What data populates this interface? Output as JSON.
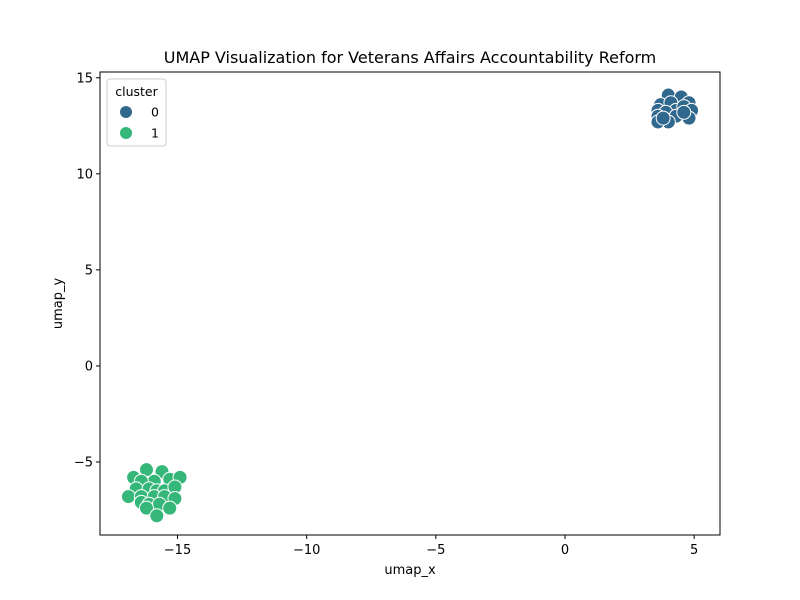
{
  "chart_data": {
    "type": "scatter",
    "title": "UMAP Visualization for Veterans Affairs Accountability Reform",
    "xlabel": "umap_x",
    "ylabel": "umap_y",
    "xlim": [
      -18.0,
      6.0
    ],
    "ylim": [
      -8.8,
      15.3
    ],
    "xticks": [
      -15,
      -10,
      -5,
      0,
      5
    ],
    "yticks": [
      -5,
      0,
      5,
      10,
      15
    ],
    "xtick_labels": [
      "−15",
      "−10",
      "−5",
      "0",
      "5"
    ],
    "ytick_labels": [
      "−5",
      "0",
      "5",
      "10",
      "15"
    ],
    "grid": false,
    "legend": {
      "title": "cluster",
      "placement": "top-left"
    },
    "series": [
      {
        "name": "0",
        "color": "#31688e",
        "points": [
          [
            4.0,
            14.1
          ],
          [
            4.5,
            14.0
          ],
          [
            3.7,
            13.6
          ],
          [
            4.1,
            13.7
          ],
          [
            4.8,
            13.7
          ],
          [
            3.6,
            13.3
          ],
          [
            4.3,
            13.3
          ],
          [
            4.6,
            13.5
          ],
          [
            4.9,
            13.3
          ],
          [
            3.9,
            13.2
          ],
          [
            3.6,
            13.0
          ],
          [
            4.3,
            13.0
          ],
          [
            4.0,
            12.7
          ],
          [
            3.6,
            12.7
          ],
          [
            4.8,
            12.9
          ],
          [
            4.6,
            13.2
          ],
          [
            3.8,
            12.9
          ]
        ]
      },
      {
        "name": "1",
        "color": "#35b779",
        "points": [
          [
            -16.2,
            -5.4
          ],
          [
            -15.6,
            -5.5
          ],
          [
            -16.7,
            -5.8
          ],
          [
            -15.9,
            -6.0
          ],
          [
            -16.4,
            -6.0
          ],
          [
            -15.3,
            -5.9
          ],
          [
            -14.9,
            -5.8
          ],
          [
            -16.6,
            -6.4
          ],
          [
            -16.1,
            -6.4
          ],
          [
            -15.8,
            -6.5
          ],
          [
            -15.5,
            -6.5
          ],
          [
            -15.1,
            -6.3
          ],
          [
            -16.9,
            -6.8
          ],
          [
            -16.4,
            -6.8
          ],
          [
            -15.9,
            -6.8
          ],
          [
            -15.5,
            -6.8
          ],
          [
            -15.1,
            -6.9
          ],
          [
            -16.4,
            -7.1
          ],
          [
            -16.1,
            -7.2
          ],
          [
            -15.7,
            -7.2
          ],
          [
            -16.2,
            -7.4
          ],
          [
            -15.3,
            -7.4
          ],
          [
            -15.8,
            -7.8
          ]
        ]
      }
    ]
  }
}
